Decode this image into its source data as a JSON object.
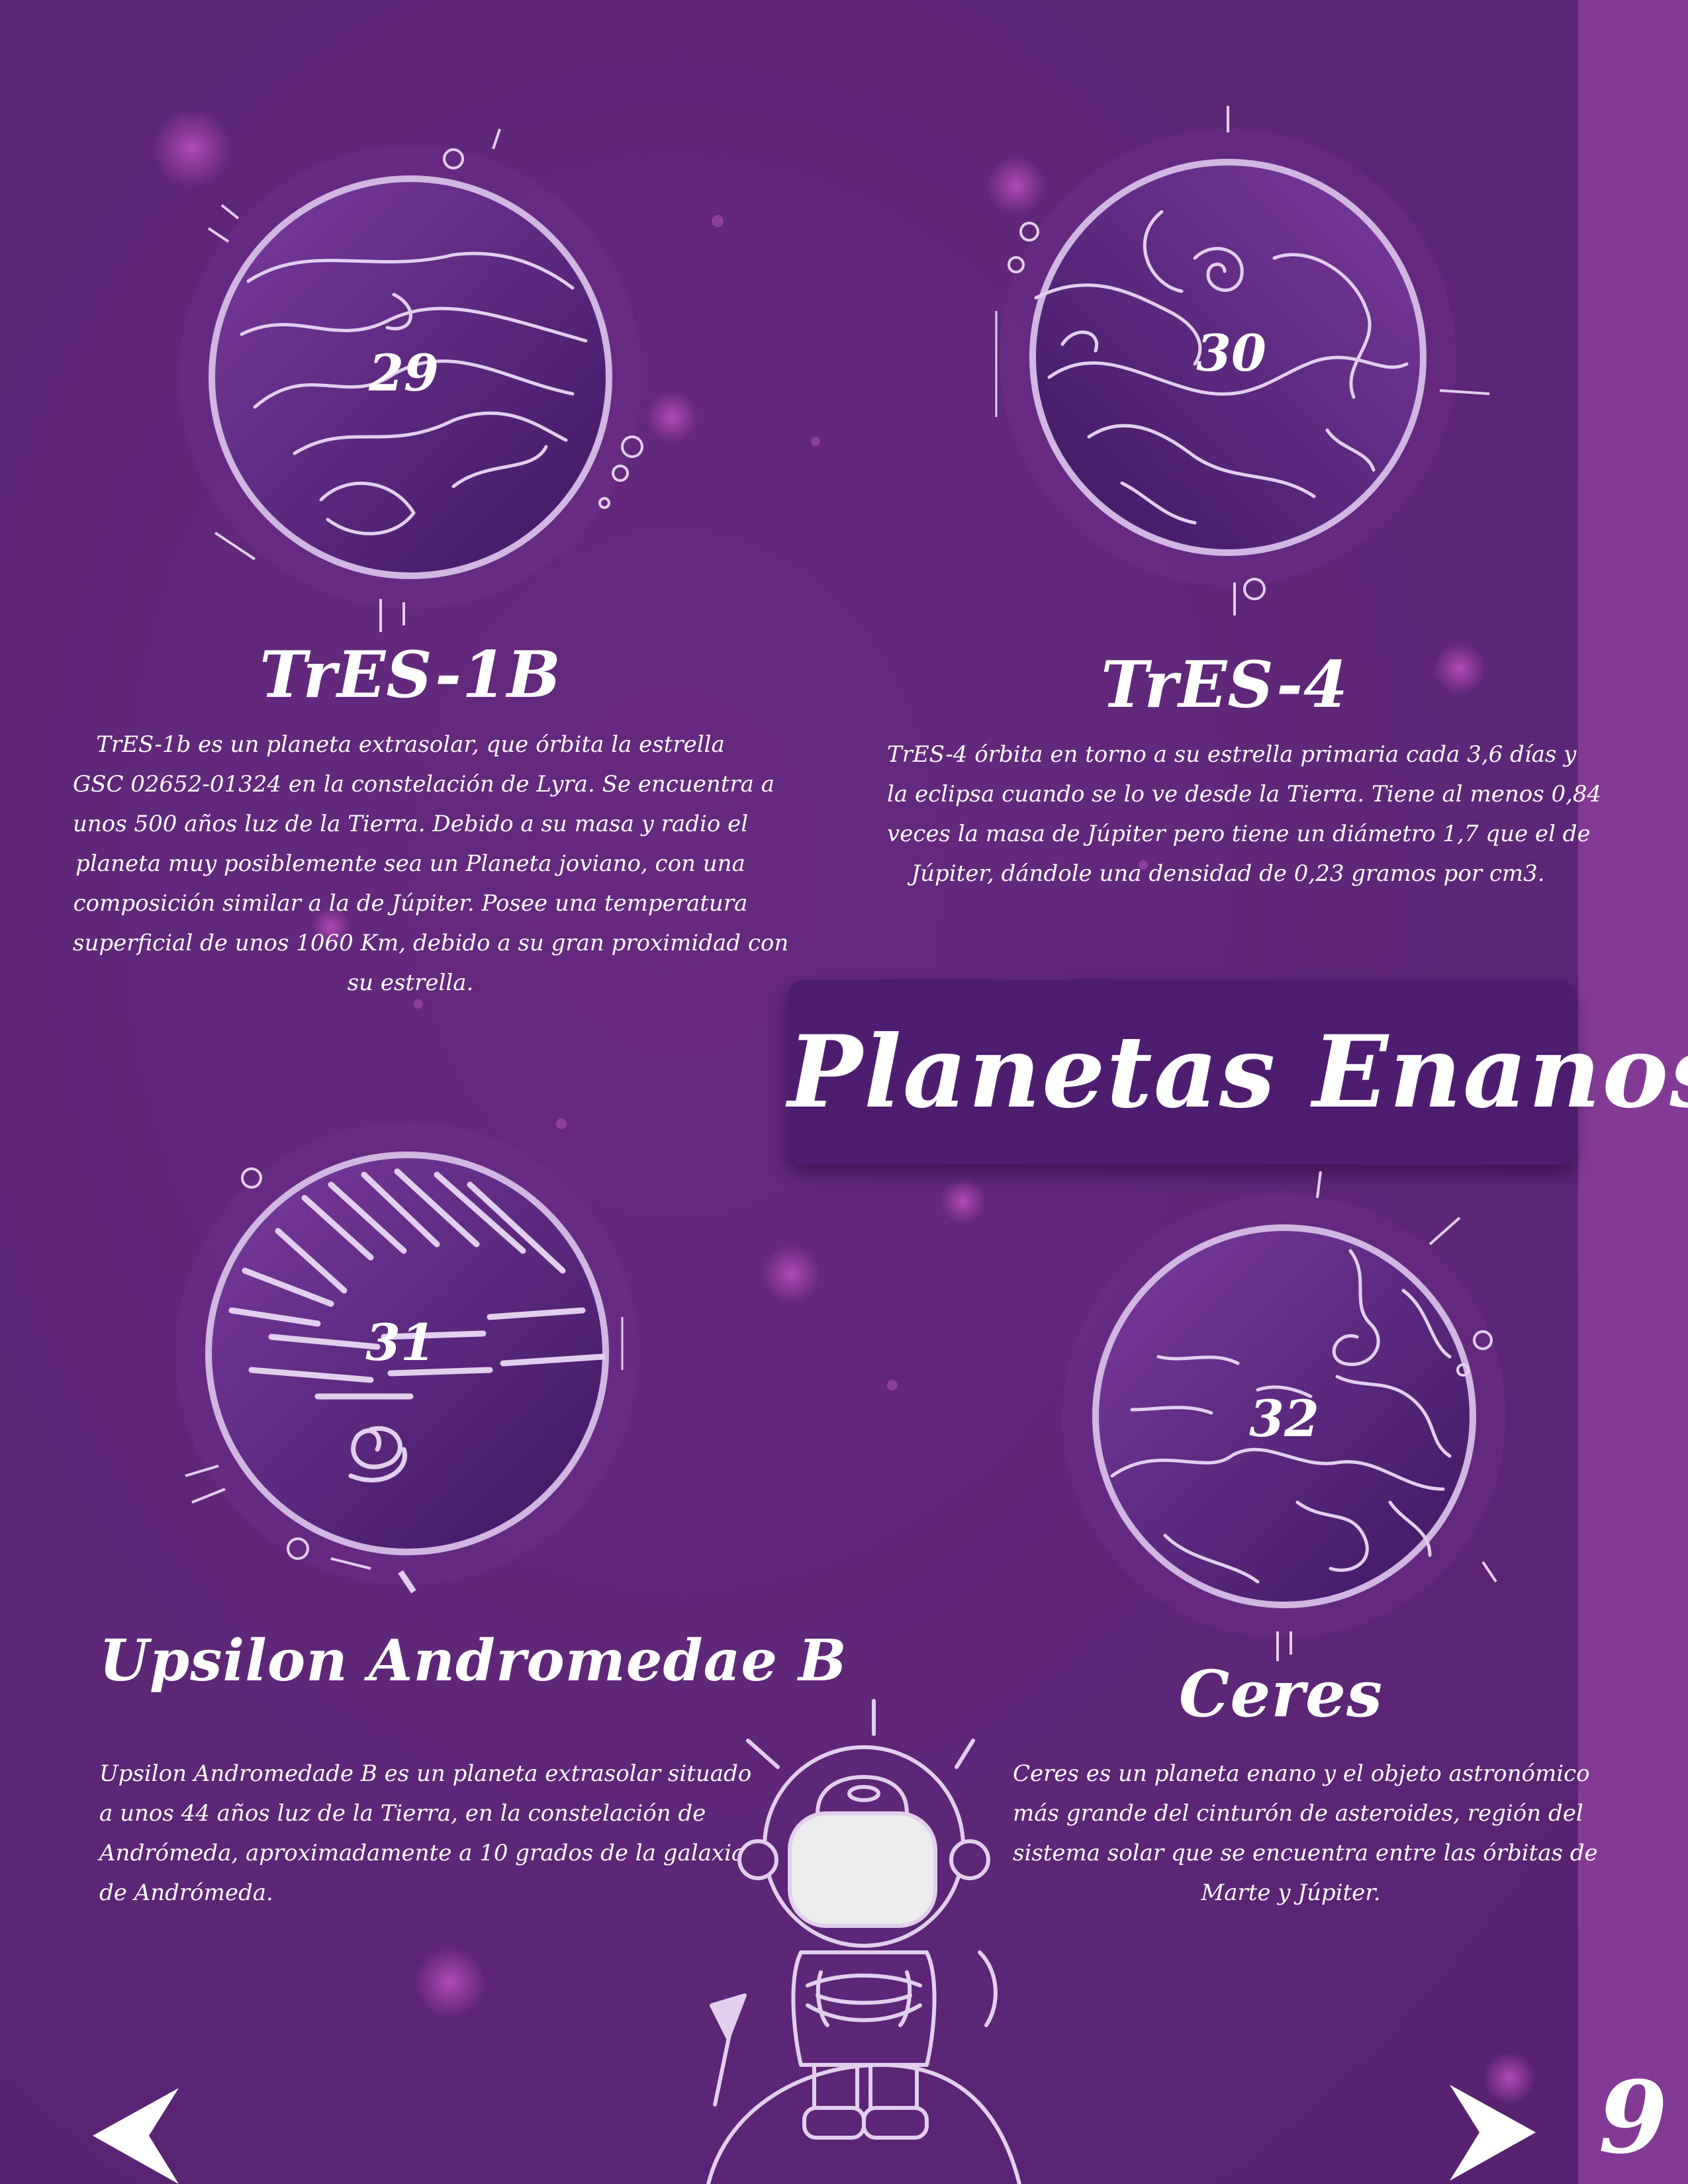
{
  "page": {
    "banner_label": "Planetas Enanos",
    "page_number": "9"
  },
  "planets": [
    {
      "number": "29",
      "name": "TrES-1B",
      "description_lines": [
        "TrES-1b es un planeta extrasolar, que órbita la estrella",
        "GSC 02652-01324 en la constelación de Lyra. Se encuentra a",
        "unos 500 años luz de la Tierra. Debido a su masa y radio el",
        "planeta muy posiblemente sea un Planeta joviano, con una",
        "composición similar a la de Júpiter. Posee una temperatura",
        "superficial de unos 1060 Km, debido a su gran proximidad con",
        "su estrella."
      ]
    },
    {
      "number": "30",
      "name": "TrES-4",
      "description_lines": [
        "TrES-4 órbita en torno a su estrella primaria cada 3,6 días y",
        "la eclipsa cuando se lo ve desde la Tierra. Tiene al menos 0,84",
        "veces la masa de Júpiter pero tiene un diámetro 1,7 que el de",
        "Júpiter, dándole una densidad de 0,23 gramos por cm3."
      ]
    },
    {
      "number": "31",
      "name": "Upsilon Andromedae B",
      "description_lines": [
        "Upsilon Andromedade B es un planeta extrasolar situado",
        "a unos 44 años luz de la Tierra, en la constelación de",
        "Andrómeda, aproximadamente a 10 grados de la galaxia",
        "de Andrómeda."
      ]
    },
    {
      "number": "32",
      "name": "Ceres",
      "description_lines": [
        "Ceres es un planeta enano y el objeto astronómico",
        "más grande del cinturón de asteroides, región del",
        "sistema solar que se encuentra entre las órbitas de",
        "Marte y Júpiter."
      ]
    }
  ],
  "navigation": {
    "prev_icon": "arrow-left-icon",
    "next_icon": "arrow-right-icon"
  },
  "colors": {
    "background": "#5e2677",
    "side_strip": "#833a95",
    "planet_fill": "#4a1d6b",
    "outline": "#d2b6e2",
    "text": "#ffffff"
  }
}
